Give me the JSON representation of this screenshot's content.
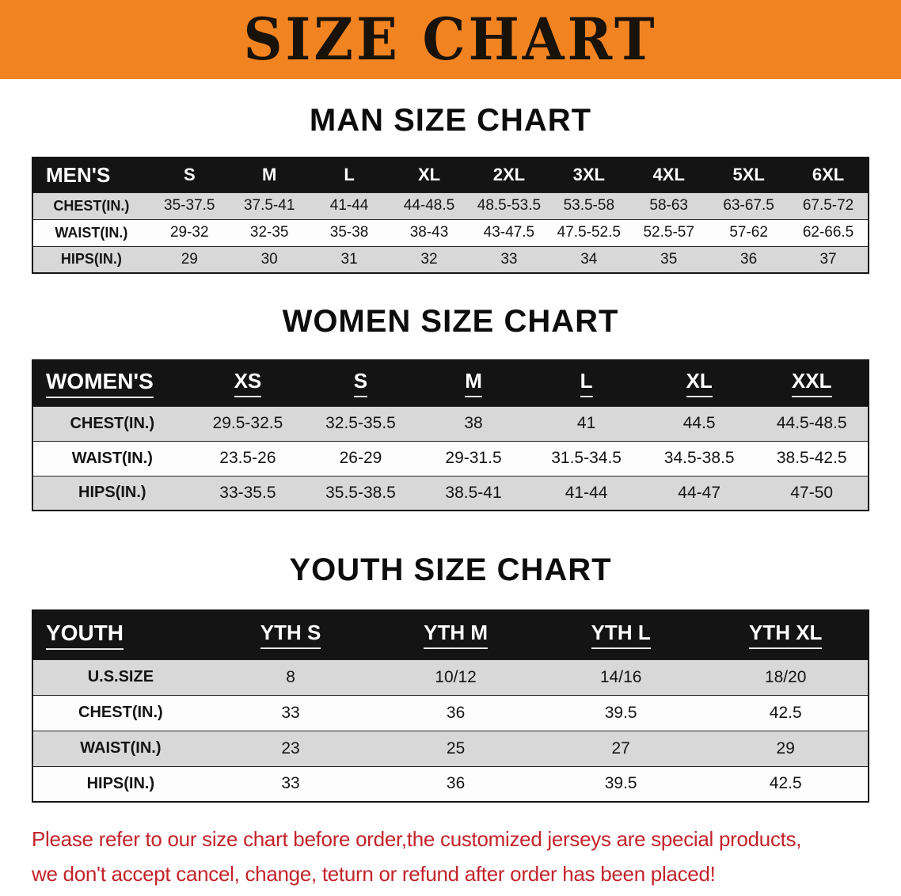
{
  "banner": {
    "title": "SIZE CHART",
    "bg_color": "#f28321",
    "text_color": "#181208"
  },
  "chart_data": [
    {
      "type": "table",
      "title": "MAN SIZE CHART",
      "columns": [
        "MEN'S",
        "S",
        "M",
        "L",
        "XL",
        "2XL",
        "3XL",
        "4XL",
        "5XL",
        "6XL"
      ],
      "rows": [
        [
          "CHEST(IN.)",
          "35-37.5",
          "37.5-41",
          "41-44",
          "44-48.5",
          "48.5-53.5",
          "53.5-58",
          "58-63",
          "63-67.5",
          "67.5-72"
        ],
        [
          "WAIST(IN.)",
          "29-32",
          "32-35",
          "35-38",
          "38-43",
          "43-47.5",
          "47.5-52.5",
          "52.5-57",
          "57-62",
          "62-66.5"
        ],
        [
          "HIPS(IN.)",
          "29",
          "30",
          "31",
          "32",
          "33",
          "34",
          "35",
          "36",
          "37"
        ]
      ]
    },
    {
      "type": "table",
      "title": "WOMEN SIZE CHART",
      "columns": [
        "WOMEN'S",
        "XS",
        "S",
        "M",
        "L",
        "XL",
        "XXL"
      ],
      "rows": [
        [
          "CHEST(IN.)",
          "29.5-32.5",
          "32.5-35.5",
          "38",
          "41",
          "44.5",
          "44.5-48.5"
        ],
        [
          "WAIST(IN.)",
          "23.5-26",
          "26-29",
          "29-31.5",
          "31.5-34.5",
          "34.5-38.5",
          "38.5-42.5"
        ],
        [
          "HIPS(IN.)",
          "33-35.5",
          "35.5-38.5",
          "38.5-41",
          "41-44",
          "44-47",
          "47-50"
        ]
      ]
    },
    {
      "type": "table",
      "title": "YOUTH SIZE CHART",
      "columns": [
        "YOUTH",
        "YTH S",
        "YTH M",
        "YTH L",
        "YTH XL"
      ],
      "rows": [
        [
          "U.S.SIZE",
          "8",
          "10/12",
          "14/16",
          "18/20"
        ],
        [
          "CHEST(IN.)",
          "33",
          "36",
          "39.5",
          "42.5"
        ],
        [
          "WAIST(IN.)",
          "23",
          "25",
          "27",
          "29"
        ],
        [
          "HIPS(IN.)",
          "33",
          "36",
          "39.5",
          "42.5"
        ]
      ]
    }
  ],
  "note": {
    "line1": "Please refer to our size chart before order,the customized jerseys are special products,",
    "line2": "we don't accept cancel, change, teturn or refund after order has been placed!",
    "color": "#c3232b"
  },
  "style": {
    "header_row_bg": "#141414",
    "alt_row_bg": "#d8d8d8"
  }
}
